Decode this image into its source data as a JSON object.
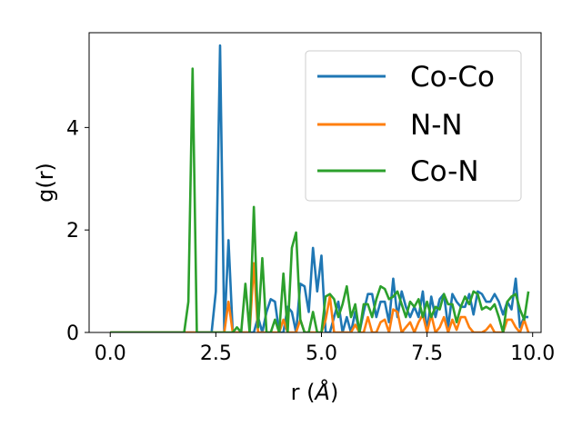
{
  "chart_data": {
    "type": "line",
    "title": "",
    "xlabel_prefix": "r (",
    "xlabel_unit": "Å",
    "xlabel_suffix": ")",
    "ylabel": "g(r)",
    "xlim": [
      -0.5,
      10.2
    ],
    "ylim": [
      0,
      5.85
    ],
    "xticks": [
      0,
      2.5,
      5,
      7.5,
      10
    ],
    "xtick_labels": [
      "0.0",
      "2.5",
      "5.0",
      "7.5",
      "10.0"
    ],
    "yticks": [
      0,
      2,
      4
    ],
    "ytick_labels": [
      "0",
      "2",
      "4"
    ],
    "grid": false,
    "legend_position": "top-right",
    "series": [
      {
        "name": "Co-Co",
        "color": "#1f77b4",
        "x": [
          0,
          0.5,
          1.0,
          1.5,
          2.0,
          2.4,
          2.5,
          2.6,
          2.7,
          2.8,
          2.9,
          3.0,
          3.1,
          3.2,
          3.3,
          3.4,
          3.5,
          3.6,
          3.7,
          3.8,
          3.9,
          4.0,
          4.1,
          4.2,
          4.3,
          4.4,
          4.5,
          4.6,
          4.7,
          4.8,
          4.9,
          5.0,
          5.1,
          5.2,
          5.3,
          5.4,
          5.5,
          5.6,
          5.7,
          5.8,
          5.9,
          6.0,
          6.1,
          6.2,
          6.3,
          6.4,
          6.5,
          6.6,
          6.7,
          6.8,
          6.9,
          7.0,
          7.1,
          7.2,
          7.3,
          7.4,
          7.5,
          7.6,
          7.7,
          7.8,
          7.9,
          8.0,
          8.1,
          8.2,
          8.3,
          8.4,
          8.5,
          8.6,
          8.7,
          8.8,
          8.9,
          9.0,
          9.1,
          9.2,
          9.3,
          9.4,
          9.5,
          9.6,
          9.7,
          9.8,
          9.9
        ],
        "y": [
          0,
          0,
          0,
          0,
          0,
          0,
          0.8,
          5.6,
          0,
          1.8,
          0,
          0,
          0,
          0,
          0,
          0,
          0.3,
          0,
          0.4,
          0.65,
          0.6,
          0,
          0,
          0.5,
          0.4,
          0,
          0.95,
          0.9,
          0.4,
          1.65,
          0.8,
          1.5,
          0,
          0,
          0.3,
          0.6,
          0,
          0.3,
          0,
          0.4,
          0,
          0.4,
          0.75,
          0.75,
          0.3,
          0.6,
          0.6,
          0.2,
          1.05,
          0.3,
          0.8,
          0.5,
          0.3,
          0.5,
          0.3,
          0.8,
          0,
          0.7,
          0.3,
          0.65,
          0.75,
          0.1,
          0.75,
          0.6,
          0.5,
          0.5,
          0.75,
          0.35,
          0.8,
          0.75,
          0.6,
          0.6,
          0.75,
          0.6,
          0.35,
          0.6,
          0.45,
          1.05,
          0.1,
          0.3,
          0.3
        ]
      },
      {
        "name": "N-N",
        "color": "#ff7f0e",
        "x": [
          0,
          0.5,
          1.0,
          1.5,
          2.0,
          2.5,
          2.7,
          2.8,
          2.9,
          3.0,
          3.3,
          3.4,
          3.5,
          3.6,
          3.9,
          4.0,
          4.1,
          4.2,
          4.3,
          4.4,
          4.5,
          4.6,
          4.9,
          5.0,
          5.1,
          5.2,
          5.3,
          5.4,
          5.7,
          5.8,
          5.9,
          6.0,
          6.1,
          6.2,
          6.3,
          6.4,
          6.5,
          6.6,
          6.7,
          6.8,
          6.9,
          7.0,
          7.1,
          7.2,
          7.3,
          7.4,
          7.5,
          7.6,
          7.7,
          7.8,
          7.9,
          8.0,
          8.1,
          8.2,
          8.3,
          8.4,
          8.5,
          8.6,
          8.7,
          8.8,
          8.9,
          9.0,
          9.1,
          9.2,
          9.3,
          9.4,
          9.5,
          9.6,
          9.7,
          9.8,
          9.9
        ],
        "y": [
          0,
          0,
          0,
          0,
          0,
          0,
          0,
          0.6,
          0,
          0,
          0,
          1.35,
          0,
          0,
          0,
          0,
          0.25,
          0,
          0,
          0,
          0.25,
          0,
          0,
          0,
          0.25,
          0.7,
          0,
          0,
          0,
          0.15,
          0,
          0,
          0.3,
          0,
          0,
          0.2,
          0.25,
          0,
          0.45,
          0.4,
          0,
          0.1,
          0.2,
          0,
          0.2,
          0.35,
          0,
          0.35,
          0,
          0.1,
          0.3,
          0,
          0.25,
          0.05,
          0.3,
          0.3,
          0.1,
          0,
          0,
          0,
          0.05,
          0.15,
          0,
          0,
          0,
          0.25,
          0.25,
          0.1,
          0,
          0.25,
          0
        ]
      },
      {
        "name": "Co-N",
        "color": "#2ca02c",
        "x": [
          0,
          0.5,
          1.0,
          1.5,
          1.75,
          1.85,
          1.95,
          2.05,
          2.15,
          2.5,
          2.8,
          2.9,
          3.0,
          3.1,
          3.2,
          3.3,
          3.4,
          3.5,
          3.6,
          3.7,
          3.8,
          3.9,
          4.0,
          4.1,
          4.2,
          4.3,
          4.4,
          4.5,
          4.6,
          4.7,
          4.8,
          4.9,
          5.0,
          5.1,
          5.2,
          5.3,
          5.4,
          5.5,
          5.6,
          5.7,
          5.8,
          5.9,
          6.0,
          6.1,
          6.2,
          6.3,
          6.4,
          6.5,
          6.6,
          6.7,
          6.8,
          6.9,
          7.0,
          7.1,
          7.2,
          7.3,
          7.4,
          7.5,
          7.6,
          7.7,
          7.8,
          7.9,
          8.0,
          8.1,
          8.2,
          8.3,
          8.4,
          8.5,
          8.6,
          8.7,
          8.8,
          8.9,
          9.0,
          9.1,
          9.2,
          9.3,
          9.4,
          9.5,
          9.6,
          9.7,
          9.8,
          9.9
        ],
        "y": [
          0,
          0,
          0,
          0,
          0,
          0.6,
          5.15,
          0,
          0,
          0,
          0,
          0,
          0.1,
          0,
          0.95,
          0,
          2.45,
          0.1,
          1.45,
          0,
          0,
          0.25,
          0,
          1.15,
          0,
          1.65,
          1.95,
          0.25,
          0,
          0,
          0.4,
          0,
          0,
          0.7,
          0.75,
          0.65,
          0.3,
          0.55,
          0.9,
          0.3,
          0.55,
          0,
          0.55,
          0.55,
          0.3,
          0.65,
          0.9,
          0.85,
          0.65,
          0.7,
          0.8,
          0.55,
          0.3,
          0.6,
          0.5,
          0.65,
          0.3,
          0.6,
          0.3,
          0.5,
          0.45,
          0.75,
          0.55,
          0.55,
          0.2,
          0.5,
          0.7,
          0.55,
          0.8,
          0.75,
          0.45,
          0.5,
          0.45,
          0.55,
          0.3,
          0,
          0.6,
          0.7,
          0.75,
          0.45,
          0.25,
          0.8
        ]
      }
    ]
  }
}
